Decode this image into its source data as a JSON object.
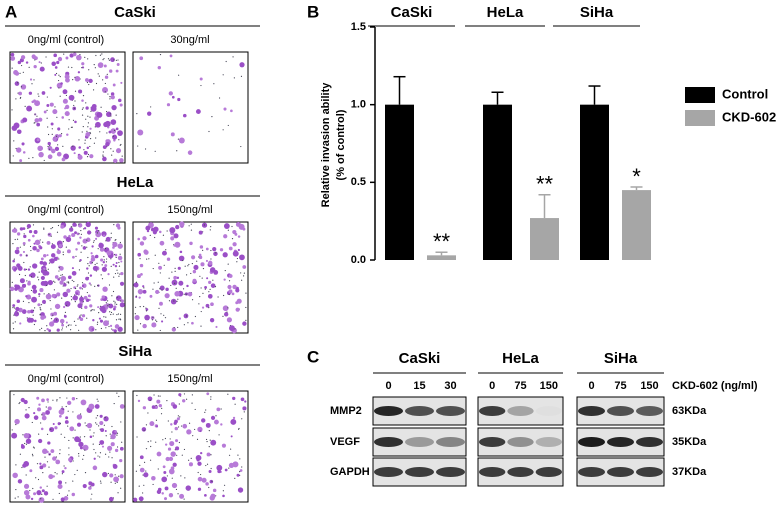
{
  "panel_a": {
    "label": "A",
    "groups": [
      {
        "title": "CaSki",
        "left": "0ng/ml (control)",
        "right": "30ng/ml"
      },
      {
        "title": "HeLa",
        "left": "0ng/ml (control)",
        "right": "150ng/ml"
      },
      {
        "title": "SiHa",
        "left": "0ng/ml (control)",
        "right": "150ng/ml"
      }
    ]
  },
  "chart_data": {
    "type": "bar",
    "panel_label": "B",
    "ylabel": [
      "Relative invasion ability",
      "(% of control)"
    ],
    "categories": [
      "CaSki",
      "HeLa",
      "SiHa"
    ],
    "series": [
      {
        "name": "Control",
        "color": "#000000",
        "values": [
          1.0,
          1.0,
          1.0
        ],
        "errors": [
          0.18,
          0.08,
          0.12
        ]
      },
      {
        "name": "CKD-602",
        "color": "#a6a6a6",
        "values": [
          0.03,
          0.27,
          0.45
        ],
        "errors": [
          0.02,
          0.15,
          0.02
        ]
      }
    ],
    "annotations": [
      "**",
      "**",
      "*"
    ],
    "ylim": [
      0,
      1.5
    ],
    "yticks": [
      {
        "value": 0,
        "label": "0.0"
      },
      0.5,
      {
        "value": 1,
        "label": "1.0"
      },
      1.5
    ],
    "legend": "right"
  },
  "panel_c": {
    "label": "C",
    "dose_label": "CKD-602 (ng/ml)",
    "cell_lines": [
      {
        "name": "CaSki",
        "doses": [
          "0",
          "15",
          "30"
        ]
      },
      {
        "name": "HeLa",
        "doses": [
          "0",
          "75",
          "150"
        ]
      },
      {
        "name": "SiHa",
        "doses": [
          "0",
          "75",
          "150"
        ]
      }
    ],
    "rows": [
      {
        "name": "MMP2",
        "size": "63KDa"
      },
      {
        "name": "VEGF",
        "size": "35KDa"
      },
      {
        "name": "GAPDH",
        "size": "37KDa"
      }
    ]
  }
}
